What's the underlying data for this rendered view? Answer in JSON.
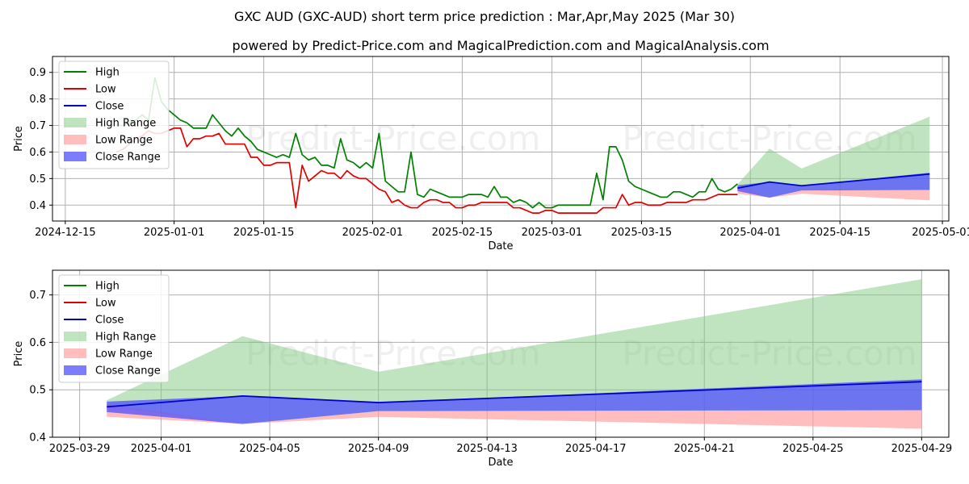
{
  "title": "GXC AUD (GXC-AUD) short term price prediction : Mar,Apr,May 2025 (Mar 30)",
  "subtitle": "powered by Predict-Price.com and MagicalPrediction.com and MagicalAnalysis.com",
  "watermark": "Predict-Price.com",
  "colors": {
    "high": "#008000",
    "low": "#e00000",
    "close": "#0000cc",
    "high_range": "#82c882",
    "low_range": "#ff9a9a",
    "close_range": "#5050ff"
  },
  "legend": [
    "High",
    "Low",
    "Close",
    "High Range",
    "Low Range",
    "Close Range"
  ],
  "chart_data": [
    {
      "type": "line",
      "xlabel": "Date",
      "ylabel": "Price",
      "grid": true,
      "legend_position": "top-left",
      "ylim": [
        0.34,
        0.96
      ],
      "yticks": [
        0.4,
        0.5,
        0.6,
        0.7,
        0.8,
        0.9
      ],
      "ytick_labels": [
        "0.4",
        "0.5",
        "0.6",
        "0.7",
        "0.8",
        "0.9"
      ],
      "xlim": [
        "2024-12-13",
        "2025-05-02"
      ],
      "xticks": [
        "2024-12-15",
        "2025-01-01",
        "2025-01-15",
        "2025-02-01",
        "2025-02-15",
        "2025-03-01",
        "2025-03-15",
        "2025-04-01",
        "2025-04-15",
        "2025-05-01"
      ],
      "xtick_labels": [
        "2024-12-15",
        "2025-01-01",
        "2025-01-15",
        "2025-02-01",
        "2025-02-15",
        "2025-03-01",
        "2025-03-15",
        "2025-04-01",
        "2025-04-15",
        "2025-05-01"
      ],
      "history": {
        "dates": [
          "2024-12-23",
          "2024-12-24",
          "2024-12-25",
          "2024-12-26",
          "2024-12-27",
          "2024-12-28",
          "2024-12-29",
          "2024-12-30",
          "2024-12-31",
          "2025-01-01",
          "2025-01-02",
          "2025-01-03",
          "2025-01-04",
          "2025-01-05",
          "2025-01-06",
          "2025-01-07",
          "2025-01-08",
          "2025-01-09",
          "2025-01-10",
          "2025-01-11",
          "2025-01-12",
          "2025-01-13",
          "2025-01-14",
          "2025-01-15",
          "2025-01-16",
          "2025-01-17",
          "2025-01-18",
          "2025-01-19",
          "2025-01-20",
          "2025-01-21",
          "2025-01-22",
          "2025-01-23",
          "2025-01-24",
          "2025-01-25",
          "2025-01-26",
          "2025-01-27",
          "2025-01-28",
          "2025-01-29",
          "2025-01-30",
          "2025-01-31",
          "2025-02-01",
          "2025-02-02",
          "2025-02-03",
          "2025-02-04",
          "2025-02-05",
          "2025-02-06",
          "2025-02-07",
          "2025-02-08",
          "2025-02-09",
          "2025-02-10",
          "2025-02-11",
          "2025-02-12",
          "2025-02-13",
          "2025-02-14",
          "2025-02-15",
          "2025-02-16",
          "2025-02-17",
          "2025-02-18",
          "2025-02-19",
          "2025-02-20",
          "2025-02-21",
          "2025-02-22",
          "2025-02-23",
          "2025-02-24",
          "2025-02-25",
          "2025-02-26",
          "2025-02-27",
          "2025-02-28",
          "2025-03-01",
          "2025-03-02",
          "2025-03-03",
          "2025-03-04",
          "2025-03-05",
          "2025-03-06",
          "2025-03-07",
          "2025-03-08",
          "2025-03-09",
          "2025-03-10",
          "2025-03-11",
          "2025-03-12",
          "2025-03-13",
          "2025-03-14",
          "2025-03-15",
          "2025-03-16",
          "2025-03-17",
          "2025-03-18",
          "2025-03-19",
          "2025-03-20",
          "2025-03-21",
          "2025-03-22",
          "2025-03-23",
          "2025-03-24",
          "2025-03-25",
          "2025-03-26",
          "2025-03-27",
          "2025-03-28",
          "2025-03-29",
          "2025-03-30"
        ],
        "high": [
          0.7,
          0.7,
          0.71,
          0.72,
          0.74,
          0.72,
          0.88,
          0.79,
          0.76,
          0.74,
          0.72,
          0.71,
          0.69,
          0.69,
          0.69,
          0.74,
          0.71,
          0.68,
          0.66,
          0.69,
          0.66,
          0.64,
          0.61,
          0.6,
          0.59,
          0.58,
          0.59,
          0.58,
          0.67,
          0.59,
          0.57,
          0.58,
          0.55,
          0.55,
          0.54,
          0.65,
          0.57,
          0.56,
          0.54,
          0.56,
          0.54,
          0.67,
          0.49,
          0.47,
          0.45,
          0.45,
          0.6,
          0.44,
          0.43,
          0.46,
          0.45,
          0.44,
          0.43,
          0.43,
          0.43,
          0.44,
          0.44,
          0.44,
          0.43,
          0.47,
          0.43,
          0.43,
          0.41,
          0.42,
          0.41,
          0.39,
          0.41,
          0.39,
          0.39,
          0.4,
          0.4,
          0.4,
          0.4,
          0.4,
          0.4,
          0.52,
          0.42,
          0.62,
          0.62,
          0.57,
          0.49,
          0.47,
          0.46,
          0.45,
          0.44,
          0.43,
          0.43,
          0.45,
          0.45,
          0.44,
          0.43,
          0.45,
          0.45,
          0.5,
          0.46,
          0.45,
          0.46,
          0.48
        ],
        "low": [
          0.6,
          0.61,
          0.63,
          0.65,
          0.66,
          0.68,
          0.67,
          0.67,
          0.68,
          0.69,
          0.69,
          0.62,
          0.65,
          0.65,
          0.66,
          0.66,
          0.67,
          0.63,
          0.63,
          0.63,
          0.63,
          0.58,
          0.58,
          0.55,
          0.55,
          0.56,
          0.56,
          0.56,
          0.39,
          0.55,
          0.49,
          0.51,
          0.53,
          0.52,
          0.52,
          0.5,
          0.53,
          0.51,
          0.5,
          0.5,
          0.48,
          0.46,
          0.45,
          0.41,
          0.42,
          0.4,
          0.39,
          0.39,
          0.41,
          0.42,
          0.42,
          0.41,
          0.41,
          0.39,
          0.39,
          0.4,
          0.4,
          0.41,
          0.41,
          0.41,
          0.41,
          0.41,
          0.39,
          0.39,
          0.38,
          0.37,
          0.37,
          0.38,
          0.38,
          0.37,
          0.37,
          0.37,
          0.37,
          0.37,
          0.37,
          0.37,
          0.39,
          0.39,
          0.39,
          0.44,
          0.4,
          0.41,
          0.41,
          0.4,
          0.4,
          0.4,
          0.41,
          0.41,
          0.41,
          0.41,
          0.42,
          0.42,
          0.42,
          0.43,
          0.44,
          0.44,
          0.44,
          0.44
        ]
      },
      "forecast": {
        "dates": [
          "2025-03-30",
          "2025-04-04",
          "2025-04-09",
          "2025-04-29"
        ],
        "close": [
          0.464,
          0.487,
          0.473,
          0.517
        ],
        "close_range_upper": [
          0.475,
          0.487,
          0.473,
          0.522
        ],
        "close_range_lower": [
          0.453,
          0.428,
          0.455,
          0.457
        ],
        "high_range_upper": [
          0.478,
          0.613,
          0.538,
          0.733
        ],
        "high_range_lower": [
          0.465,
          0.428,
          0.455,
          0.457
        ],
        "low_range_upper": [
          0.47,
          0.428,
          0.455,
          0.457
        ],
        "low_range_lower": [
          0.443,
          0.428,
          0.443,
          0.418
        ]
      }
    },
    {
      "type": "line",
      "xlabel": "Date",
      "ylabel": "Price",
      "grid": true,
      "legend_position": "top-left",
      "ylim": [
        0.4,
        0.752
      ],
      "yticks": [
        0.4,
        0.5,
        0.6,
        0.7
      ],
      "ytick_labels": [
        "0.4",
        "0.5",
        "0.6",
        "0.7"
      ],
      "xlim": [
        "2025-03-28",
        "2025-04-30"
      ],
      "xticks": [
        "2025-03-29",
        "2025-04-01",
        "2025-04-05",
        "2025-04-09",
        "2025-04-13",
        "2025-04-17",
        "2025-04-21",
        "2025-04-25",
        "2025-04-29"
      ],
      "xtick_labels": [
        "2025-03-29",
        "2025-04-01",
        "2025-04-05",
        "2025-04-09",
        "2025-04-13",
        "2025-04-17",
        "2025-04-21",
        "2025-04-25",
        "2025-04-29"
      ],
      "forecast": {
        "dates": [
          "2025-03-30",
          "2025-04-04",
          "2025-04-09",
          "2025-04-29"
        ],
        "close": [
          0.464,
          0.487,
          0.473,
          0.517
        ],
        "close_range_upper": [
          0.475,
          0.487,
          0.473,
          0.522
        ],
        "close_range_lower": [
          0.453,
          0.428,
          0.455,
          0.457
        ],
        "high_range_upper": [
          0.478,
          0.613,
          0.538,
          0.733
        ],
        "high_range_lower": [
          0.465,
          0.428,
          0.455,
          0.457
        ],
        "low_range_upper": [
          0.47,
          0.428,
          0.455,
          0.457
        ],
        "low_range_lower": [
          0.443,
          0.428,
          0.443,
          0.418
        ]
      }
    }
  ]
}
